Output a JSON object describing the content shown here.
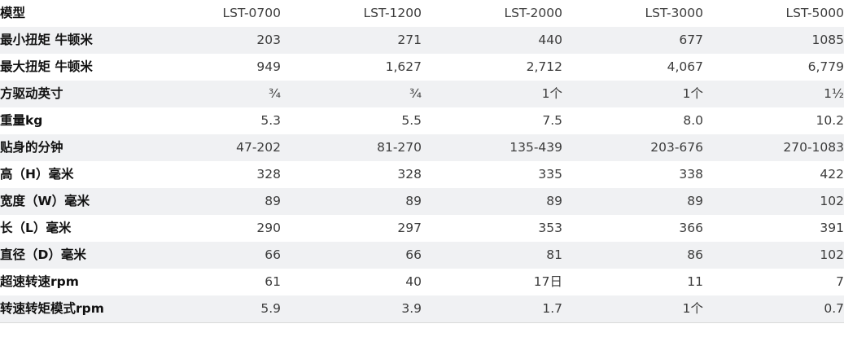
{
  "table": {
    "header_label": "模型",
    "models": [
      "LST-0700",
      "LST-1200",
      "LST-2000",
      "LST-3000",
      "LST-5000"
    ],
    "rows": [
      {
        "label": "最小扭矩 牛顿米",
        "values": [
          "203",
          "271",
          "440",
          "677",
          "1085"
        ]
      },
      {
        "label": "最大扭矩 牛顿米",
        "values": [
          "949",
          "1,627",
          "2,712",
          "4,067",
          "6,779"
        ]
      },
      {
        "label": "方驱动英寸",
        "values": [
          "¾",
          "¾",
          "1个",
          "1个",
          "1½"
        ]
      },
      {
        "label": "重量kg",
        "values": [
          "5.3",
          "5.5",
          "7.5",
          "8.0",
          "10.2"
        ]
      },
      {
        "label": "贴身的分钟",
        "values": [
          "47-202",
          "81-270",
          "135-439",
          "203-676",
          "270-1083"
        ]
      },
      {
        "label": "高（H）毫米",
        "values": [
          "328",
          "328",
          "335",
          "338",
          "422"
        ]
      },
      {
        "label": "宽度（W）毫米",
        "values": [
          "89",
          "89",
          "89",
          "89",
          "102"
        ]
      },
      {
        "label": "长（L）毫米",
        "values": [
          "290",
          "297",
          "353",
          "366",
          "391"
        ]
      },
      {
        "label": "直径（D）毫米",
        "values": [
          "66",
          "66",
          "81",
          "86",
          "102"
        ]
      },
      {
        "label": "超速转速rpm",
        "values": [
          "61",
          "40",
          "17日",
          "11",
          "7"
        ]
      },
      {
        "label": "转速转矩模式rpm",
        "values": [
          "5.9",
          "3.9",
          "1.7",
          "1个",
          "0.7"
        ]
      }
    ]
  },
  "colors": {
    "stripe": "#f0f1f3",
    "text": "#333333",
    "label_text": "#111111"
  }
}
